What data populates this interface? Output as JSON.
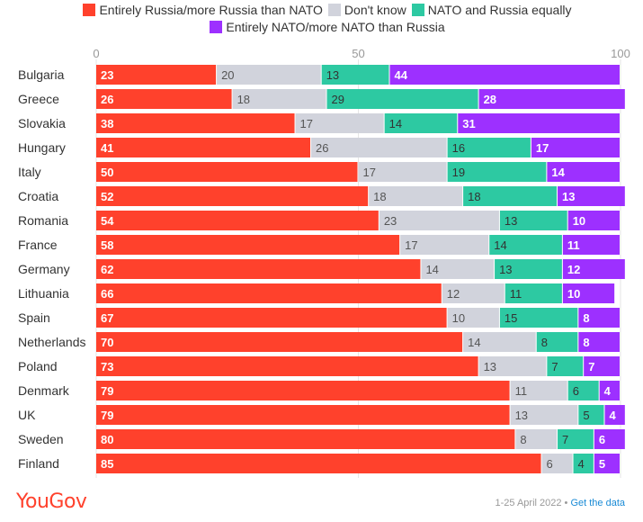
{
  "legend": [
    {
      "label": "Entirely Russia/more Russia than NATO",
      "color": "#ff412c"
    },
    {
      "label": "Don't know",
      "color": "#d1d3dc"
    },
    {
      "label": "NATO and Russia equally",
      "color": "#2dc9a2"
    },
    {
      "label": "Entirely NATO/more NATO than Russia",
      "color": "#9d30ff"
    }
  ],
  "chart_data": {
    "type": "bar",
    "orientation": "horizontal",
    "stacked": true,
    "xlim": [
      0,
      100
    ],
    "xticks": [
      "0",
      "50",
      "100"
    ],
    "categories": [
      "Bulgaria",
      "Greece",
      "Slovakia",
      "Hungary",
      "Italy",
      "Croatia",
      "Romania",
      "France",
      "Germany",
      "Lithuania",
      "Spain",
      "Netherlands",
      "Poland",
      "Denmark",
      "UK",
      "Sweden",
      "Finland"
    ],
    "series": [
      {
        "name": "Entirely Russia/more Russia than NATO",
        "color": "#ff412c",
        "label_color": "#ffffff",
        "values": [
          23,
          26,
          38,
          41,
          50,
          52,
          54,
          58,
          62,
          66,
          67,
          70,
          73,
          79,
          79,
          80,
          85
        ]
      },
      {
        "name": "Don't know",
        "color": "#d1d3dc",
        "label_color": "#555555",
        "values": [
          20,
          18,
          17,
          26,
          17,
          18,
          23,
          17,
          14,
          12,
          10,
          14,
          13,
          11,
          13,
          8,
          6
        ]
      },
      {
        "name": "NATO and Russia equally",
        "color": "#2dc9a2",
        "label_color": "#333333",
        "values": [
          13,
          29,
          14,
          16,
          19,
          18,
          13,
          14,
          13,
          11,
          15,
          8,
          7,
          6,
          5,
          7,
          4
        ]
      },
      {
        "name": "Entirely NATO/more NATO than Russia",
        "color": "#9d30ff",
        "label_color": "#ffffff",
        "values": [
          44,
          28,
          31,
          17,
          14,
          13,
          10,
          11,
          12,
          10,
          8,
          8,
          7,
          4,
          4,
          6,
          5
        ]
      }
    ],
    "grid": true,
    "legend_position": "top"
  },
  "footer": {
    "brand": "YouGov",
    "date": "1-25 April 2022",
    "separator": " • ",
    "link": "Get the data"
  }
}
